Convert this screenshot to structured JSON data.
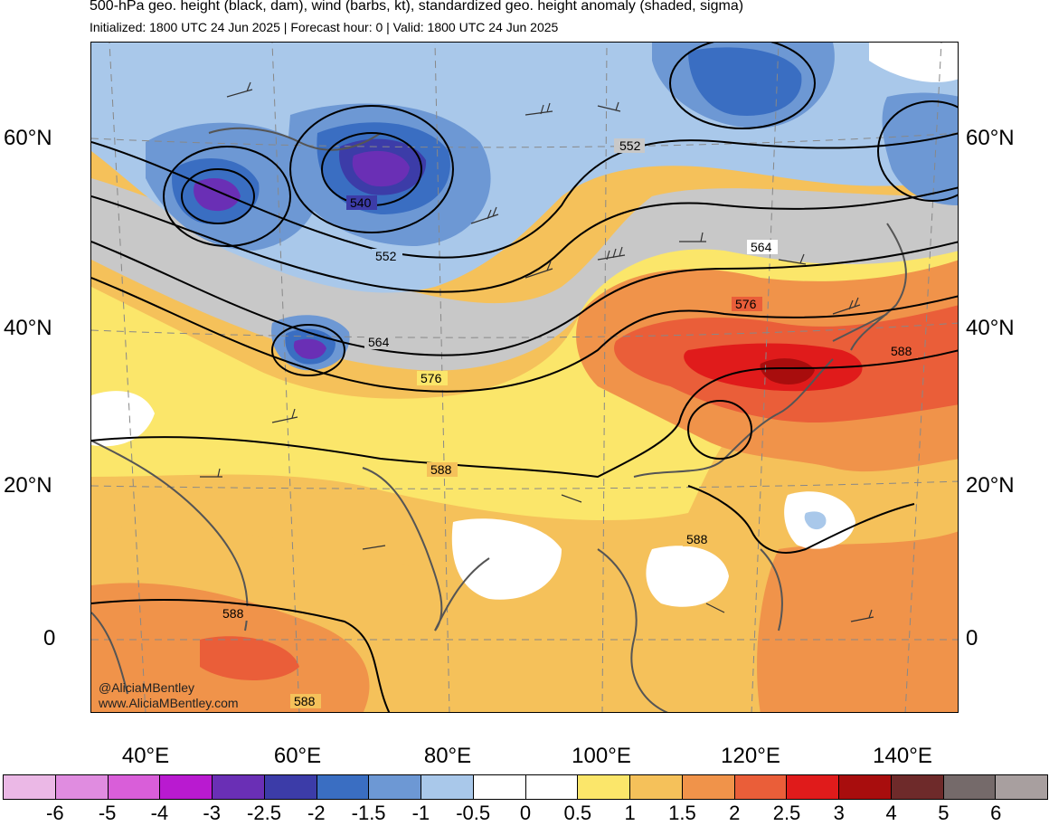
{
  "header": {
    "title": "500-hPa geo. height (black, dam), wind (barbs, kt), standardized geo. height anomaly (shaded, sigma)",
    "subtitle": "Initialized: 1800 UTC 24 Jun 2025 | Forecast hour: 0 | Valid: 1800 UTC 24 Jun 2025"
  },
  "axes": {
    "lat_left": [
      "60°N",
      "40°N",
      "20°N",
      "0"
    ],
    "lat_right": [
      "60°N",
      "40°N",
      "20°N",
      "0"
    ],
    "lon": [
      "40°E",
      "60°E",
      "80°E",
      "100°E",
      "120°E",
      "140°E"
    ]
  },
  "contour_labels": [
    "552",
    "540",
    "552",
    "564",
    "576",
    "564",
    "576",
    "588",
    "588",
    "588",
    "588",
    "588"
  ],
  "credits": {
    "handle": "@AliciaMBentley",
    "site": "www.AliciaMBentley.com"
  },
  "colorbar": {
    "colors": [
      "#ebb8e6",
      "#e08ce0",
      "#d95ed9",
      "#b91ad0",
      "#6a2fb5",
      "#3c3ca8",
      "#3a6ec2",
      "#6d98d4",
      "#a9c8ea",
      "#ffffff",
      "#ffffff",
      "#fbe66a",
      "#f5c15a",
      "#f0934a",
      "#ea5e39",
      "#e01b1b",
      "#a80d0d",
      "#6e2a2a",
      "#756a6a",
      "#a89f9f"
    ],
    "ticks": [
      "-6",
      "-5",
      "-4",
      "-3",
      "-2.5",
      "-2",
      "-1.5",
      "-1",
      "-0.5",
      "0",
      "0.5",
      "1",
      "1.5",
      "2",
      "2.5",
      "3",
      "4",
      "5",
      "6"
    ]
  }
}
